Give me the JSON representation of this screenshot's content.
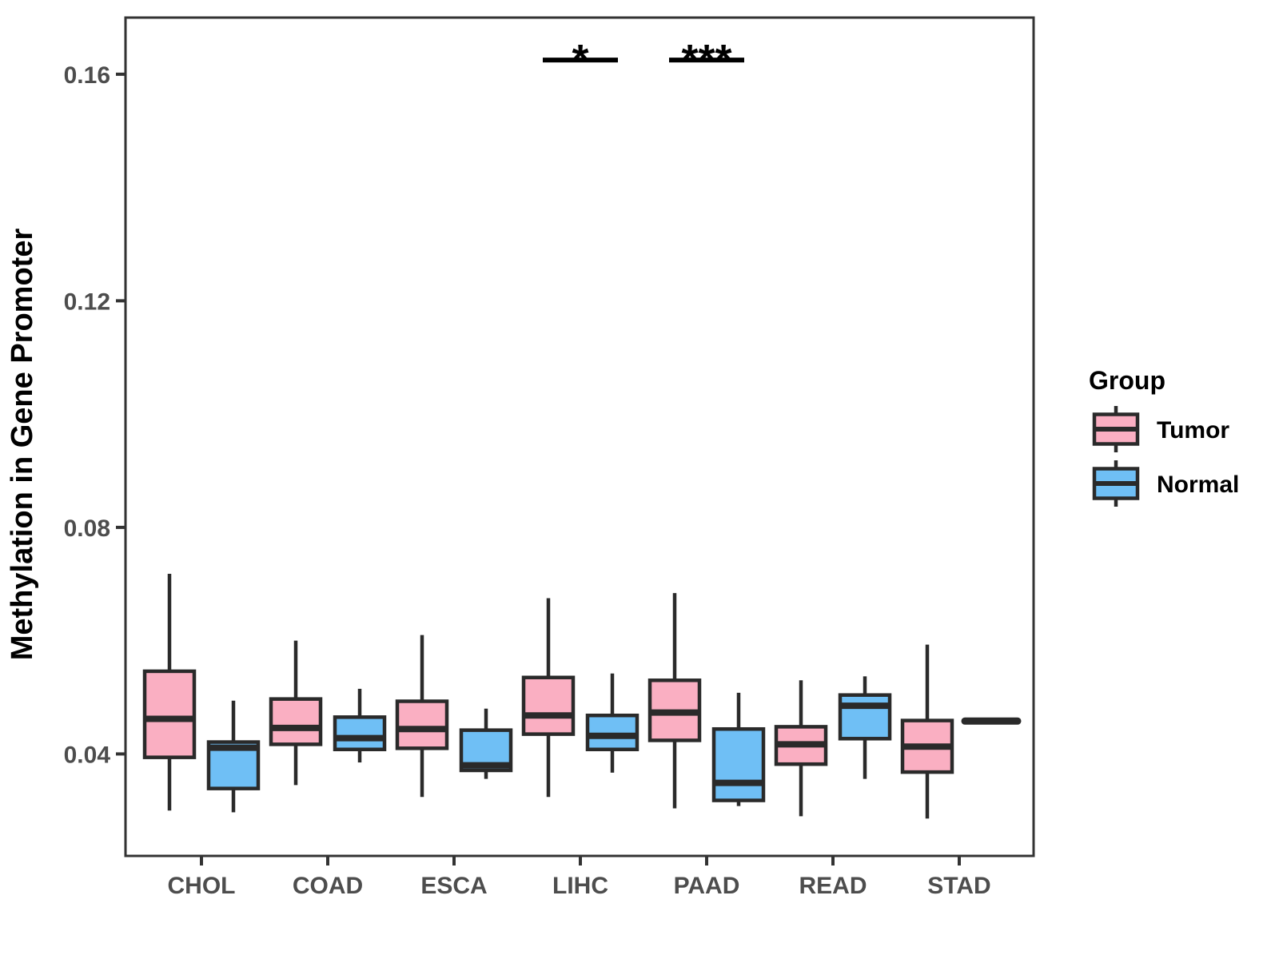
{
  "chart_data": {
    "type": "boxplot",
    "title": "",
    "ylabel": "Methylation in Gene Promoter",
    "xlabel": "",
    "legend_title": "Group",
    "legend_position": "right",
    "grid": false,
    "categories": [
      "CHOL",
      "COAD",
      "ESCA",
      "LIHC",
      "PAAD",
      "READ",
      "STAD"
    ],
    "y_tick_values": [
      0.04,
      0.08,
      0.12,
      0.16
    ],
    "y_tick_labels": [
      "0.04",
      "0.08",
      "0.12",
      "0.16"
    ],
    "ylim": [
      0.022,
      0.17
    ],
    "series": [
      {
        "name": "Tumor",
        "color": "#FAAFC2",
        "boxes": [
          {
            "category": "CHOL",
            "low": 0.03,
            "q1": 0.0394,
            "median": 0.0462,
            "q3": 0.0546,
            "high": 0.0718
          },
          {
            "category": "COAD",
            "low": 0.0345,
            "q1": 0.0417,
            "median": 0.0446,
            "q3": 0.0497,
            "high": 0.06
          },
          {
            "category": "ESCA",
            "low": 0.0324,
            "q1": 0.041,
            "median": 0.0444,
            "q3": 0.0493,
            "high": 0.061
          },
          {
            "category": "LIHC",
            "low": 0.0324,
            "q1": 0.0435,
            "median": 0.0468,
            "q3": 0.0535,
            "high": 0.0675
          },
          {
            "category": "PAAD",
            "low": 0.0304,
            "q1": 0.0424,
            "median": 0.0473,
            "q3": 0.053,
            "high": 0.0684
          },
          {
            "category": "READ",
            "low": 0.029,
            "q1": 0.0382,
            "median": 0.0417,
            "q3": 0.0448,
            "high": 0.053
          },
          {
            "category": "STAD",
            "low": 0.0286,
            "q1": 0.0368,
            "median": 0.0413,
            "q3": 0.0459,
            "high": 0.0593
          }
        ]
      },
      {
        "name": "Normal",
        "color": "#6FBFF5",
        "boxes": [
          {
            "category": "CHOL",
            "low": 0.0297,
            "q1": 0.0339,
            "median": 0.0411,
            "q3": 0.0421,
            "high": 0.0494
          },
          {
            "category": "COAD",
            "low": 0.0385,
            "q1": 0.0408,
            "median": 0.0428,
            "q3": 0.0465,
            "high": 0.0515
          },
          {
            "category": "ESCA",
            "low": 0.0356,
            "q1": 0.0371,
            "median": 0.038,
            "q3": 0.0442,
            "high": 0.048
          },
          {
            "category": "LIHC",
            "low": 0.0367,
            "q1": 0.0408,
            "median": 0.0432,
            "q3": 0.0468,
            "high": 0.0542
          },
          {
            "category": "PAAD",
            "low": 0.0308,
            "q1": 0.0318,
            "median": 0.0349,
            "q3": 0.0444,
            "high": 0.0508
          },
          {
            "category": "READ",
            "low": 0.0356,
            "q1": 0.0427,
            "median": 0.0485,
            "q3": 0.0504,
            "high": 0.0537
          },
          {
            "category": "STAD",
            "value": 0.0458
          }
        ]
      }
    ],
    "significance": [
      {
        "category": "LIHC",
        "label": "*",
        "y": 0.1625
      },
      {
        "category": "PAAD",
        "label": "***",
        "y": 0.1625
      }
    ]
  },
  "colors": {
    "box_outline": "#2A2A2A",
    "axis_line": "#333333",
    "tick_label": "#4D4D4D",
    "title_text": "#000000",
    "significance": "#000000",
    "background": "#FFFFFF"
  }
}
